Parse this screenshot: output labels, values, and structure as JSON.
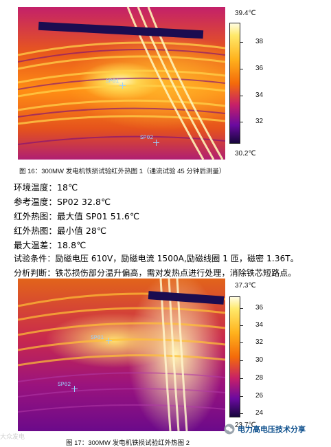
{
  "figure1": {
    "scale_max": "39.4℃",
    "scale_min": "30.2℃",
    "ticks": [
      "38",
      "36",
      "34",
      "32"
    ],
    "spot1": "SP01",
    "spot2": "SP02",
    "caption": "图 16：300MW 发电机铁损试验红外热图 1（通流试验 45 分钟后测量）"
  },
  "lines": [
    "环境温度：18℃",
    "参考温度：SP02 32.8℃",
    "红外热图：最大值 SP01 51.6℃",
    "红外热图：最小值 28℃",
    "最大温差：18.8℃",
    "试验条件：励磁电压 610V，励磁电流 1500A,励磁线圈 1 匝，磁密 1.36T。",
    "分析判断：铁芯损伤部分温升偏高，需对发热点进行处理，消除铁芯短路点。"
  ],
  "figure2": {
    "scale_max": "37.3℃",
    "scale_min": "23.7℃",
    "ticks": [
      "36",
      "34",
      "32",
      "30",
      "28",
      "26",
      "24"
    ],
    "spot1": "SP01",
    "spot2": "SP02",
    "caption": "图 17：300MW 发电机铁损试验红外热图 2"
  },
  "watermark": {
    "left": "大众发电",
    "right": "电力高电压技术分享"
  },
  "colors": {
    "hot": "#fff6b0",
    "warm": "#ff9a12",
    "mid": "#e2441e",
    "cool": "#8a0f8c",
    "cold": "#1b0c50",
    "brand": "#0d4f8c"
  }
}
